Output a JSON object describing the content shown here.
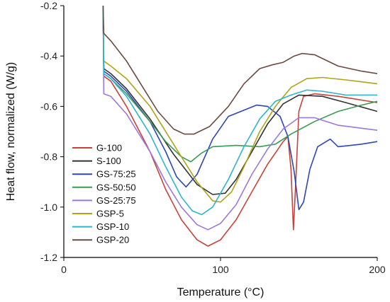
{
  "chart_data": {
    "type": "line",
    "title": "",
    "xlabel": "Temperature (°C)",
    "ylabel": "Heat flow, normalized (W/g)",
    "xlim": [
      0,
      200
    ],
    "ylim": [
      -1.2,
      -0.2
    ],
    "xticks": [
      0,
      100,
      200
    ],
    "xtick_labels": [
      "0",
      "100",
      "200"
    ],
    "yticks": [
      -1.2,
      -1.0,
      -0.8,
      -0.6,
      -0.4,
      -0.2
    ],
    "ytick_labels": [
      "-1.2",
      "-1.0",
      "-0.8",
      "-0.6",
      "-0.4",
      "-0.2"
    ],
    "grid": false,
    "legend": "bottom-left",
    "series": [
      {
        "name": "G-100",
        "color": "#c8423a",
        "points": [
          [
            25,
            -0.2
          ],
          [
            25.5,
            -0.48
          ],
          [
            30,
            -0.5
          ],
          [
            40,
            -0.6
          ],
          [
            55,
            -0.78
          ],
          [
            65,
            -0.93
          ],
          [
            75,
            -1.05
          ],
          [
            85,
            -1.13
          ],
          [
            92,
            -1.155
          ],
          [
            100,
            -1.13
          ],
          [
            110,
            -1.05
          ],
          [
            120,
            -0.94
          ],
          [
            130,
            -0.83
          ],
          [
            140,
            -0.74
          ],
          [
            143,
            -0.72
          ],
          [
            145,
            -0.85
          ],
          [
            146.5,
            -1.09
          ],
          [
            148,
            -0.9
          ],
          [
            150,
            -0.62
          ],
          [
            153,
            -0.56
          ],
          [
            160,
            -0.55
          ],
          [
            175,
            -0.56
          ],
          [
            190,
            -0.575
          ],
          [
            200,
            -0.585
          ]
        ]
      },
      {
        "name": "S-100",
        "color": "#333333",
        "points": [
          [
            25,
            -0.2
          ],
          [
            25.5,
            -0.45
          ],
          [
            30,
            -0.47
          ],
          [
            40,
            -0.53
          ],
          [
            55,
            -0.65
          ],
          [
            70,
            -0.79
          ],
          [
            85,
            -0.91
          ],
          [
            95,
            -0.95
          ],
          [
            103,
            -0.945
          ],
          [
            110,
            -0.89
          ],
          [
            120,
            -0.78
          ],
          [
            130,
            -0.67
          ],
          [
            140,
            -0.59
          ],
          [
            150,
            -0.555
          ],
          [
            165,
            -0.56
          ],
          [
            180,
            -0.585
          ],
          [
            200,
            -0.62
          ]
        ]
      },
      {
        "name": "GS-75:25",
        "color": "#2f46b8",
        "points": [
          [
            25,
            -0.2
          ],
          [
            25.5,
            -0.46
          ],
          [
            30,
            -0.48
          ],
          [
            40,
            -0.54
          ],
          [
            55,
            -0.66
          ],
          [
            65,
            -0.78
          ],
          [
            72,
            -0.88
          ],
          [
            78,
            -0.92
          ],
          [
            85,
            -0.87
          ],
          [
            95,
            -0.73
          ],
          [
            105,
            -0.64
          ],
          [
            115,
            -0.615
          ],
          [
            123,
            -0.595
          ],
          [
            130,
            -0.6
          ],
          [
            138,
            -0.64
          ],
          [
            143,
            -0.72
          ],
          [
            147,
            -0.86
          ],
          [
            150,
            -1.01
          ],
          [
            153,
            -0.98
          ],
          [
            157,
            -0.85
          ],
          [
            162,
            -0.76
          ],
          [
            170,
            -0.73
          ],
          [
            175,
            -0.76
          ],
          [
            183,
            -0.755
          ],
          [
            190,
            -0.75
          ],
          [
            200,
            -0.74
          ]
        ]
      },
      {
        "name": "GS-50:50",
        "color": "#3a9a52",
        "points": [
          [
            25,
            -0.2
          ],
          [
            25.5,
            -0.47
          ],
          [
            30,
            -0.49
          ],
          [
            40,
            -0.55
          ],
          [
            55,
            -0.66
          ],
          [
            65,
            -0.74
          ],
          [
            75,
            -0.8
          ],
          [
            81,
            -0.82
          ],
          [
            88,
            -0.785
          ],
          [
            95,
            -0.76
          ],
          [
            110,
            -0.755
          ],
          [
            125,
            -0.76
          ],
          [
            135,
            -0.75
          ],
          [
            145,
            -0.71
          ],
          [
            160,
            -0.66
          ],
          [
            175,
            -0.62
          ],
          [
            190,
            -0.595
          ],
          [
            200,
            -0.58
          ]
        ]
      },
      {
        "name": "GS-25:75",
        "color": "#9b78e0",
        "points": [
          [
            25,
            -0.2
          ],
          [
            25.5,
            -0.55
          ],
          [
            30,
            -0.56
          ],
          [
            40,
            -0.63
          ],
          [
            55,
            -0.78
          ],
          [
            65,
            -0.9
          ],
          [
            75,
            -1.0
          ],
          [
            85,
            -1.07
          ],
          [
            92,
            -1.09
          ],
          [
            100,
            -1.065
          ],
          [
            110,
            -0.99
          ],
          [
            120,
            -0.87
          ],
          [
            130,
            -0.77
          ],
          [
            140,
            -0.69
          ],
          [
            150,
            -0.645
          ],
          [
            160,
            -0.645
          ],
          [
            175,
            -0.675
          ],
          [
            200,
            -0.695
          ]
        ]
      },
      {
        "name": "GSP-5",
        "color": "#b0a416",
        "points": [
          [
            25,
            -0.2
          ],
          [
            25.5,
            -0.42
          ],
          [
            30,
            -0.44
          ],
          [
            40,
            -0.49
          ],
          [
            55,
            -0.6
          ],
          [
            70,
            -0.75
          ],
          [
            85,
            -0.9
          ],
          [
            95,
            -0.975
          ],
          [
            100,
            -0.98
          ],
          [
            107,
            -0.94
          ],
          [
            115,
            -0.84
          ],
          [
            125,
            -0.7
          ],
          [
            135,
            -0.6
          ],
          [
            145,
            -0.525
          ],
          [
            155,
            -0.49
          ],
          [
            165,
            -0.485
          ],
          [
            180,
            -0.495
          ],
          [
            200,
            -0.51
          ]
        ]
      },
      {
        "name": "GSP-10",
        "color": "#2fb5cc",
        "points": [
          [
            25,
            -0.2
          ],
          [
            25.5,
            -0.47
          ],
          [
            30,
            -0.49
          ],
          [
            40,
            -0.56
          ],
          [
            55,
            -0.71
          ],
          [
            65,
            -0.84
          ],
          [
            75,
            -0.96
          ],
          [
            82,
            -1.015
          ],
          [
            88,
            -1.03
          ],
          [
            95,
            -1.0
          ],
          [
            105,
            -0.89
          ],
          [
            115,
            -0.76
          ],
          [
            125,
            -0.65
          ],
          [
            135,
            -0.58
          ],
          [
            145,
            -0.555
          ],
          [
            155,
            -0.535
          ],
          [
            165,
            -0.54
          ],
          [
            180,
            -0.555
          ],
          [
            200,
            -0.555
          ]
        ]
      },
      {
        "name": "GSP-20",
        "color": "#6b4a42",
        "points": [
          [
            25,
            -0.2
          ],
          [
            25.5,
            -0.31
          ],
          [
            30,
            -0.34
          ],
          [
            40,
            -0.42
          ],
          [
            50,
            -0.52
          ],
          [
            60,
            -0.62
          ],
          [
            70,
            -0.69
          ],
          [
            77,
            -0.71
          ],
          [
            83,
            -0.71
          ],
          [
            93,
            -0.68
          ],
          [
            105,
            -0.6
          ],
          [
            115,
            -0.51
          ],
          [
            125,
            -0.45
          ],
          [
            133,
            -0.435
          ],
          [
            140,
            -0.425
          ],
          [
            147,
            -0.4
          ],
          [
            152,
            -0.39
          ],
          [
            160,
            -0.395
          ],
          [
            175,
            -0.44
          ],
          [
            190,
            -0.46
          ],
          [
            200,
            -0.47
          ]
        ]
      }
    ]
  }
}
